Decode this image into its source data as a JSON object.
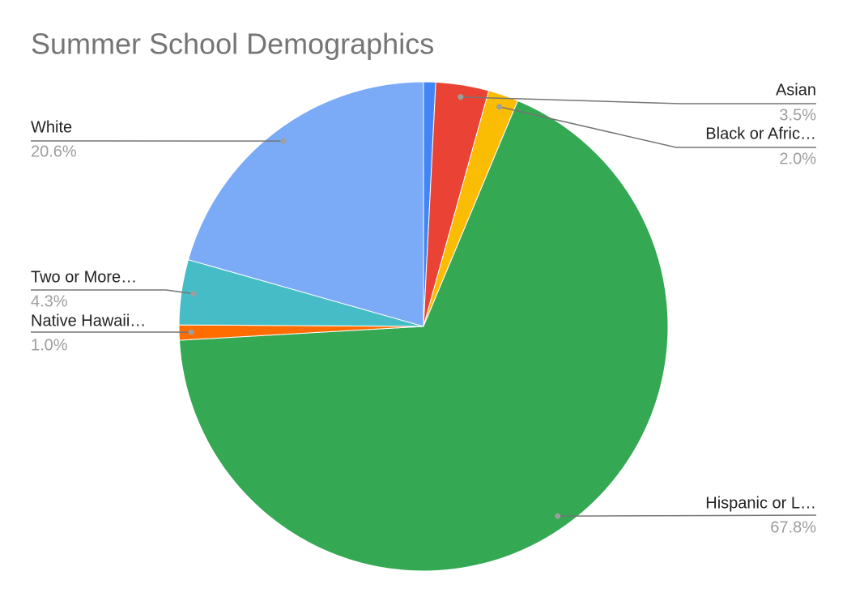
{
  "chart_data": {
    "type": "pie",
    "title": "Summer School Demographics",
    "categories": [
      null,
      "Asian",
      "Black or Afric…",
      "Hispanic or L…",
      "Native Hawaii…",
      "Two or More…",
      "White"
    ],
    "values": [
      0.8,
      3.5,
      2.0,
      67.8,
      1.0,
      4.3,
      20.6
    ],
    "value_labels": [
      null,
      "3.5%",
      "2.0%",
      "67.8%",
      "1.0%",
      "4.3%",
      "20.6%"
    ],
    "colors": [
      "#4285f4",
      "#ea4335",
      "#fbbc04",
      "#34a853",
      "#ff6d01",
      "#46bdc6",
      "#7baaf7"
    ]
  }
}
